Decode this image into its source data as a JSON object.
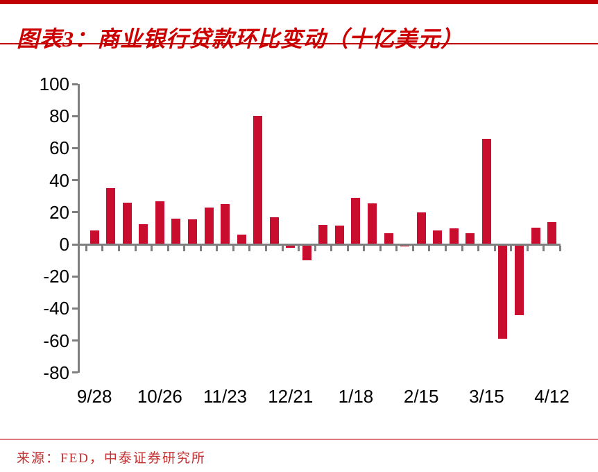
{
  "header": {
    "title": "图表3：商业银行贷款环比变动（十亿美元）"
  },
  "footer": {
    "source": "来源：FED，中泰证券研究所"
  },
  "colors": {
    "bar": "#c80d2f",
    "title_text": "#cc0000",
    "accent_line": "#c00000",
    "source_line": "#dd7c7c",
    "source_text": "#c33030",
    "axis": "#7f7f7f",
    "tick_text": "#000000"
  },
  "chart_data": {
    "type": "bar",
    "title": "图表3：商业银行贷款环比变动（十亿美元）",
    "xlabel": "",
    "ylabel": "",
    "values": [
      8.5,
      35,
      26,
      12.5,
      27,
      16,
      15.5,
      23,
      25,
      6,
      80,
      17,
      -2,
      -10,
      12,
      11.5,
      29,
      25.5,
      7,
      -1.5,
      20,
      8.5,
      10,
      7,
      66,
      -59,
      -44,
      10.5,
      14
    ],
    "x_tick_labels": [
      "9/28",
      "10/26",
      "11/23",
      "12/21",
      "1/18",
      "2/15",
      "3/15",
      "4/12"
    ],
    "x_tick_every": 4,
    "y_ticks": [
      100,
      80,
      60,
      40,
      20,
      0,
      -20,
      -40,
      -60,
      -80
    ],
    "ylim": [
      -80,
      100
    ],
    "grid": false,
    "legend": "none",
    "bar_color": "#c80d2f"
  }
}
